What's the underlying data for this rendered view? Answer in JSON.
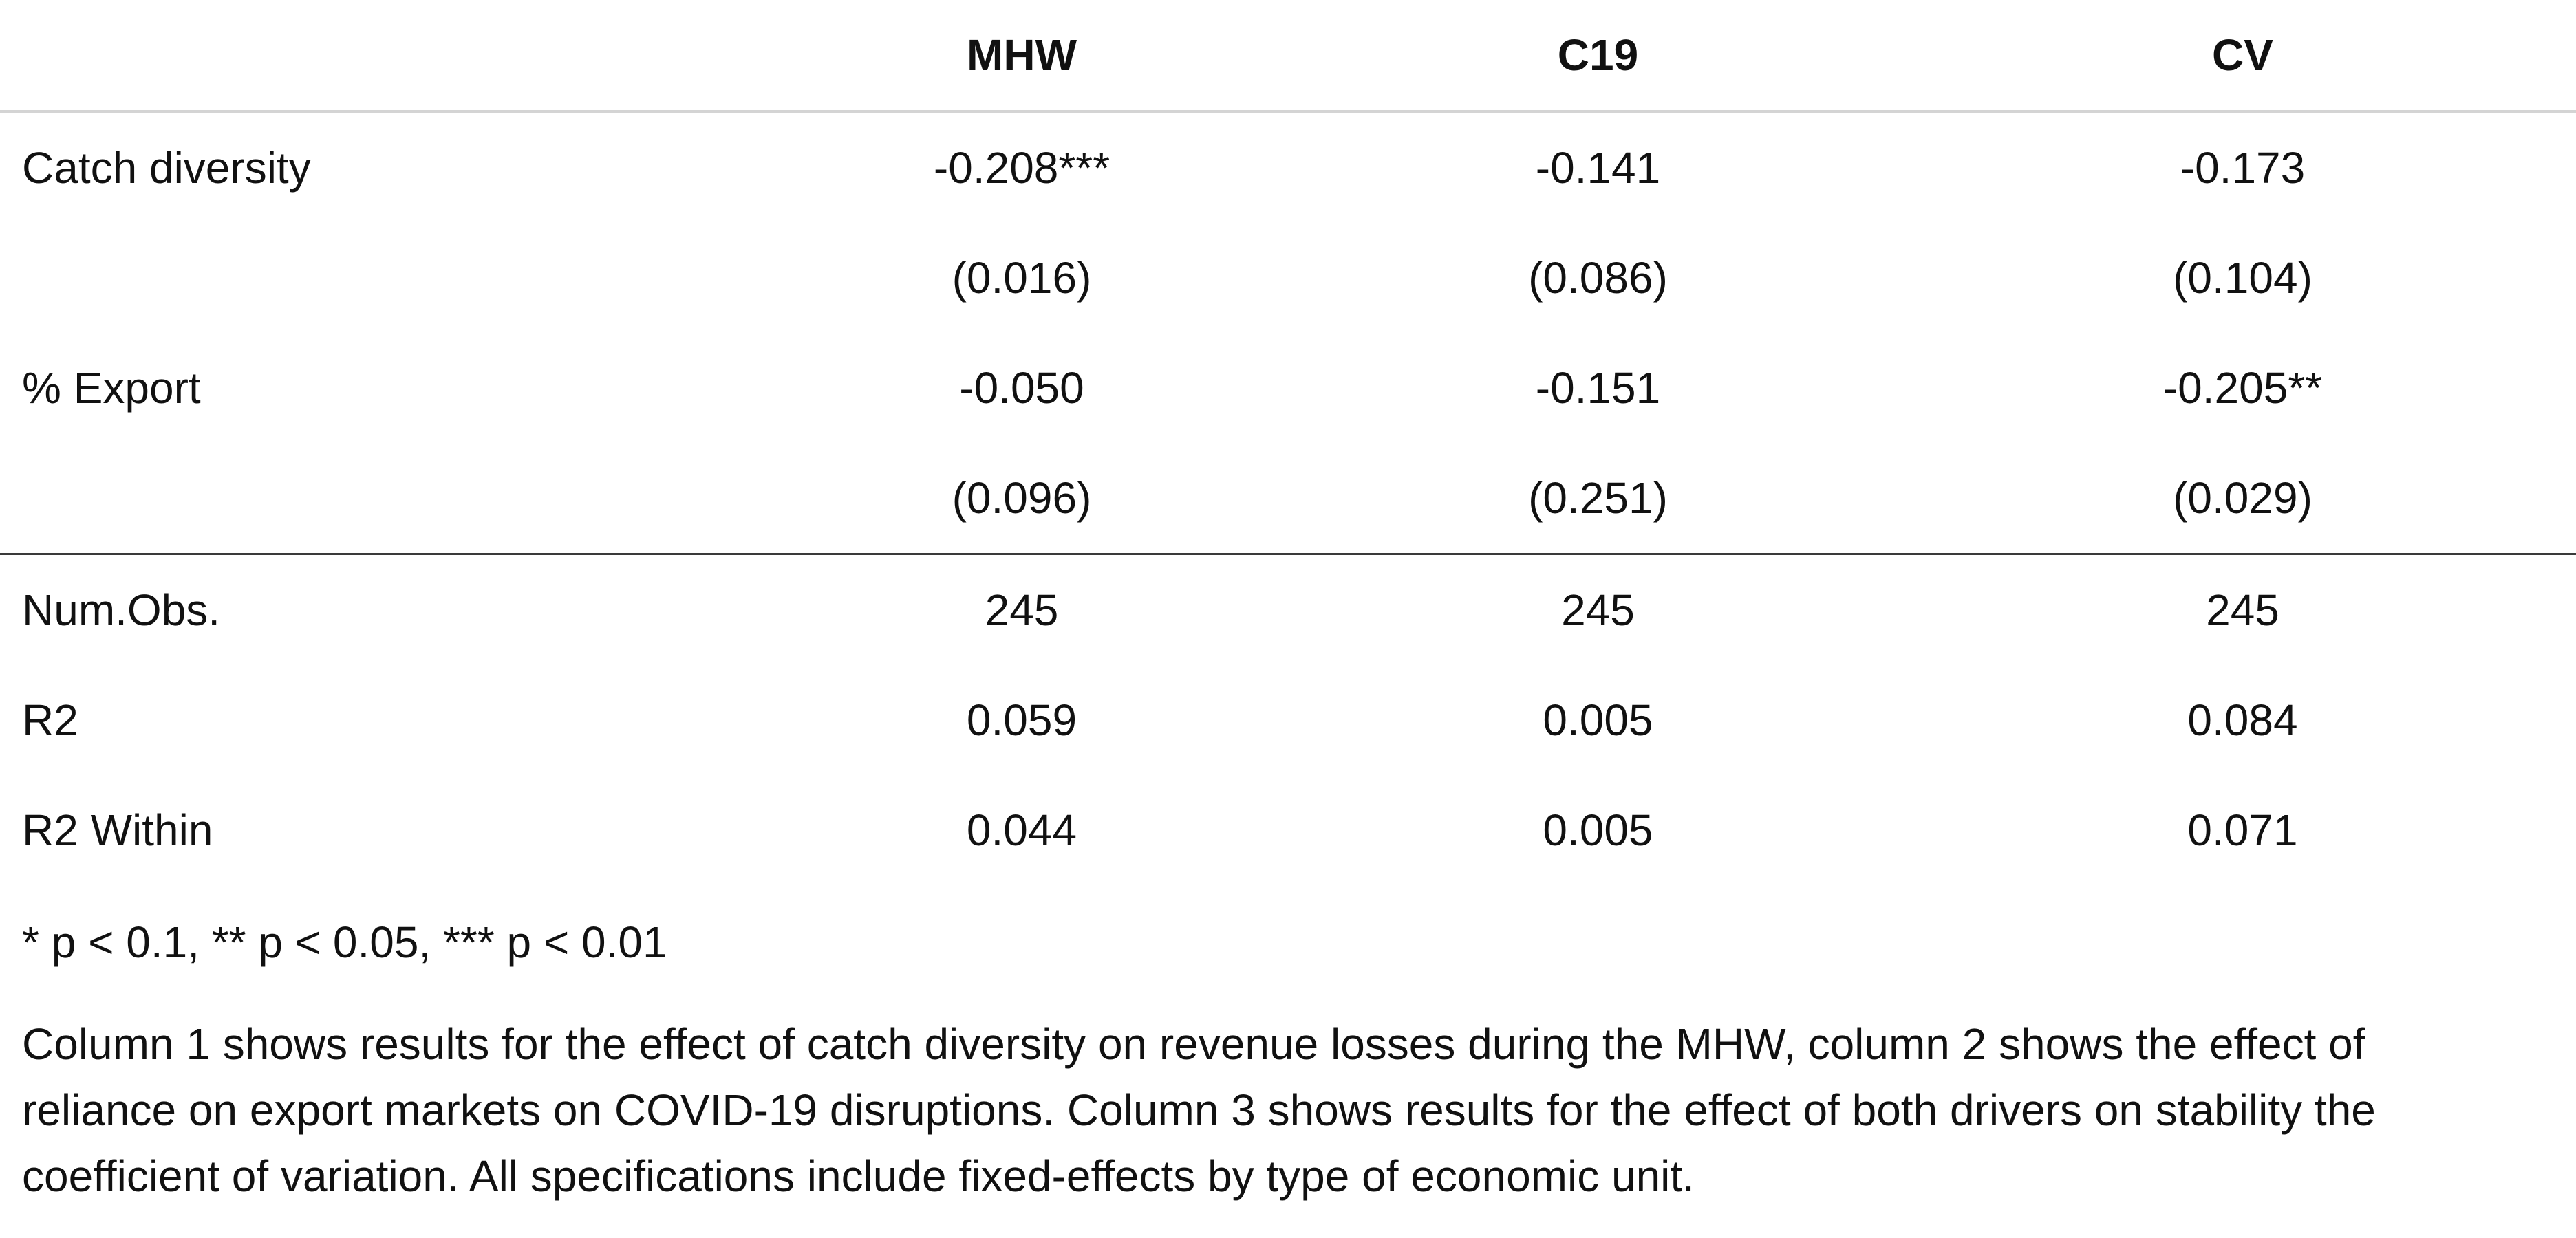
{
  "table": {
    "headers": [
      "",
      "MHW",
      "C19",
      "CV"
    ],
    "rows": [
      {
        "label": "Catch diversity",
        "values": [
          "-0.208***",
          "-0.141",
          "-0.173"
        ]
      },
      {
        "label": "",
        "values": [
          "(0.016)",
          "(0.086)",
          "(0.104)"
        ]
      },
      {
        "label": "% Export",
        "values": [
          "-0.050",
          "-0.151",
          "-0.205**"
        ]
      },
      {
        "label": "",
        "values": [
          "(0.096)",
          "(0.251)",
          "(0.029)"
        ]
      },
      {
        "label": "Num.Obs.",
        "values": [
          "245",
          "245",
          "245"
        ]
      },
      {
        "label": "R2",
        "values": [
          "0.059",
          "0.005",
          "0.084"
        ]
      },
      {
        "label": "R2 Within",
        "values": [
          "0.044",
          "0.005",
          "0.071"
        ]
      }
    ]
  },
  "notes": {
    "significance": "* p < 0.1, ** p < 0.05, *** p < 0.01",
    "caption": "Column 1 shows results for the effect of catch diversity on revenue losses during the MHW, column 2 shows the effect of reliance on export markets on COVID-19 disruptions. Column 3 shows results for the effect of both drivers on stability the coefficient of variation. All specifications include fixed-effects by type of economic unit."
  }
}
